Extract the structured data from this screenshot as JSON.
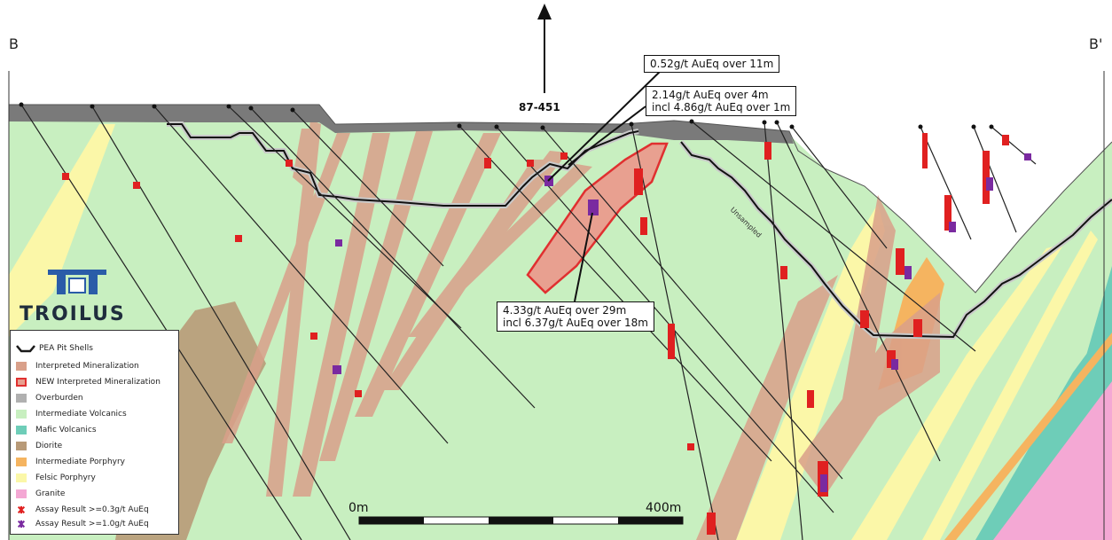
{
  "section": {
    "label_left": "B",
    "label_right": "B'",
    "hole_id": "87-451",
    "unsampled_label": "Unsampled"
  },
  "callouts": [
    {
      "lines": [
        "0.52g/t AuEq over 11m"
      ]
    },
    {
      "lines": [
        "2.14g/t AuEq over 4m",
        "incl 4.86g/t AuEq over 1m"
      ]
    },
    {
      "lines": [
        "4.33g/t AuEq over 29m",
        "incl 6.37g/t AuEq over 18m"
      ]
    }
  ],
  "logo": {
    "text": "TROILUS"
  },
  "scale_bar": {
    "start_label": "0m",
    "end_label": "400m"
  },
  "legend": {
    "items": [
      {
        "label": "PEA Pit Shells",
        "color": "#1a1a1a",
        "kind": "line"
      },
      {
        "label": "Interpreted Mineralization",
        "color": "#d9a08a",
        "kind": "fill"
      },
      {
        "label": "NEW Interpreted Mineralization",
        "color": "#e8a090",
        "kind": "outline",
        "outline": "#e03030"
      },
      {
        "label": "Overburden",
        "color": "#b0b0b0",
        "kind": "fill"
      },
      {
        "label": "Intermediate Volcanics",
        "color": "#c8efc0",
        "kind": "fill"
      },
      {
        "label": "Mafic Volcanics",
        "color": "#6ecdb8",
        "kind": "fill"
      },
      {
        "label": "Diorite",
        "color": "#b89a78",
        "kind": "fill"
      },
      {
        "label": "Intermediate Porphyry",
        "color": "#f5b460",
        "kind": "fill"
      },
      {
        "label": "Felsic Porphyry",
        "color": "#fbf7a8",
        "kind": "fill"
      },
      {
        "label": "Granite",
        "color": "#f4a8d4",
        "kind": "fill"
      },
      {
        "label": "Assay Result >=0.3g/t AuEq",
        "color": "#e02020",
        "kind": "star"
      },
      {
        "label": "Assay Result >=1.0g/t AuEq",
        "color": "#7a2aa0",
        "kind": "star"
      }
    ]
  }
}
